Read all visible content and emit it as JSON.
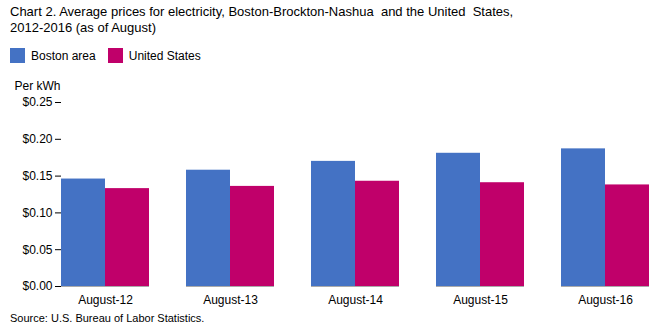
{
  "chart_data": {
    "type": "bar",
    "title": "Chart 2. Average prices for electricity, Boston-Brockton-Nashua  and the United  States,",
    "subtitle": "2012-2016 (as of August)",
    "ylabel": "Per kWh",
    "source": "Source: U.S. Bureau of Labor Statistics.",
    "categories": [
      "August-12",
      "August-13",
      "August-14",
      "August-15",
      "August-16"
    ],
    "series": [
      {
        "name": "Boston area",
        "color": "#4472C4",
        "values": [
          0.146,
          0.158,
          0.17,
          0.181,
          0.187
        ]
      },
      {
        "name": "United States",
        "color": "#C0006A",
        "values": [
          0.133,
          0.136,
          0.143,
          0.141,
          0.138
        ]
      }
    ],
    "ylim": [
      0,
      0.25
    ],
    "yticks": [
      {
        "value": 0.0,
        "label": "$0.00"
      },
      {
        "value": 0.05,
        "label": "$0.05"
      },
      {
        "value": 0.1,
        "label": "$0.10"
      },
      {
        "value": 0.15,
        "label": "$0.15"
      },
      {
        "value": 0.2,
        "label": "$0.20"
      },
      {
        "value": 0.25,
        "label": "$0.25"
      }
    ],
    "grid": false,
    "legend": "top"
  }
}
